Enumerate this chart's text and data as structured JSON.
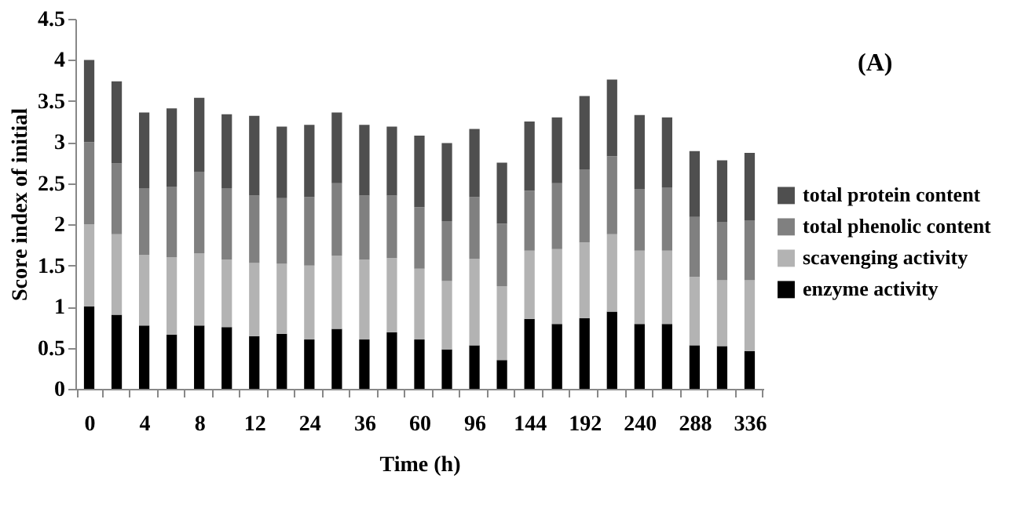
{
  "chart_data": {
    "type": "bar",
    "stacked": true,
    "xlabel": "Time (h)",
    "ylabel": "Score index of initial",
    "annotations": [
      "(A)"
    ],
    "categories": [
      "0",
      null,
      "4",
      null,
      "8",
      null,
      "12",
      null,
      "24",
      null,
      "36",
      null,
      "60",
      null,
      "96",
      null,
      "144",
      null,
      "192",
      null,
      "240",
      null,
      "288",
      null,
      "336"
    ],
    "series": [
      {
        "name": "enzyme activity",
        "color": "#000000",
        "values": [
          1.0,
          0.9,
          0.77,
          0.66,
          0.77,
          0.75,
          0.64,
          0.67,
          0.6,
          0.73,
          0.6,
          0.69,
          0.6,
          0.48,
          0.53,
          0.35,
          0.85,
          0.79,
          0.86,
          0.94,
          0.79,
          0.79,
          0.53,
          0.52,
          0.46
        ]
      },
      {
        "name": "scavenging activity",
        "color": "#b3b3b3",
        "values": [
          1.0,
          0.98,
          0.86,
          0.94,
          0.88,
          0.82,
          0.89,
          0.85,
          0.9,
          0.89,
          0.97,
          0.9,
          0.86,
          0.83,
          1.05,
          0.9,
          0.83,
          0.91,
          0.92,
          0.94,
          0.89,
          0.89,
          0.83,
          0.8,
          0.86
        ]
      },
      {
        "name": "total phenolic content",
        "color": "#808080",
        "values": [
          1.0,
          0.86,
          0.81,
          0.86,
          0.99,
          0.87,
          0.82,
          0.8,
          0.83,
          0.88,
          0.78,
          0.76,
          0.75,
          0.73,
          0.75,
          0.76,
          0.73,
          0.8,
          0.89,
          0.95,
          0.75,
          0.77,
          0.73,
          0.71,
          0.73
        ]
      },
      {
        "name": "total protein content",
        "color": "#4f4f4f",
        "values": [
          1.0,
          1.0,
          0.92,
          0.95,
          0.9,
          0.9,
          0.97,
          0.87,
          0.88,
          0.86,
          0.86,
          0.84,
          0.87,
          0.95,
          0.83,
          0.74,
          0.84,
          0.8,
          0.89,
          0.93,
          0.9,
          0.85,
          0.8,
          0.75,
          0.82
        ]
      }
    ],
    "ylim": [
      0,
      4.5
    ],
    "yticks": [
      0,
      0.5,
      1,
      1.5,
      2,
      2.5,
      3,
      3.5,
      4,
      4.5
    ],
    "grid": false,
    "legend": "right"
  }
}
